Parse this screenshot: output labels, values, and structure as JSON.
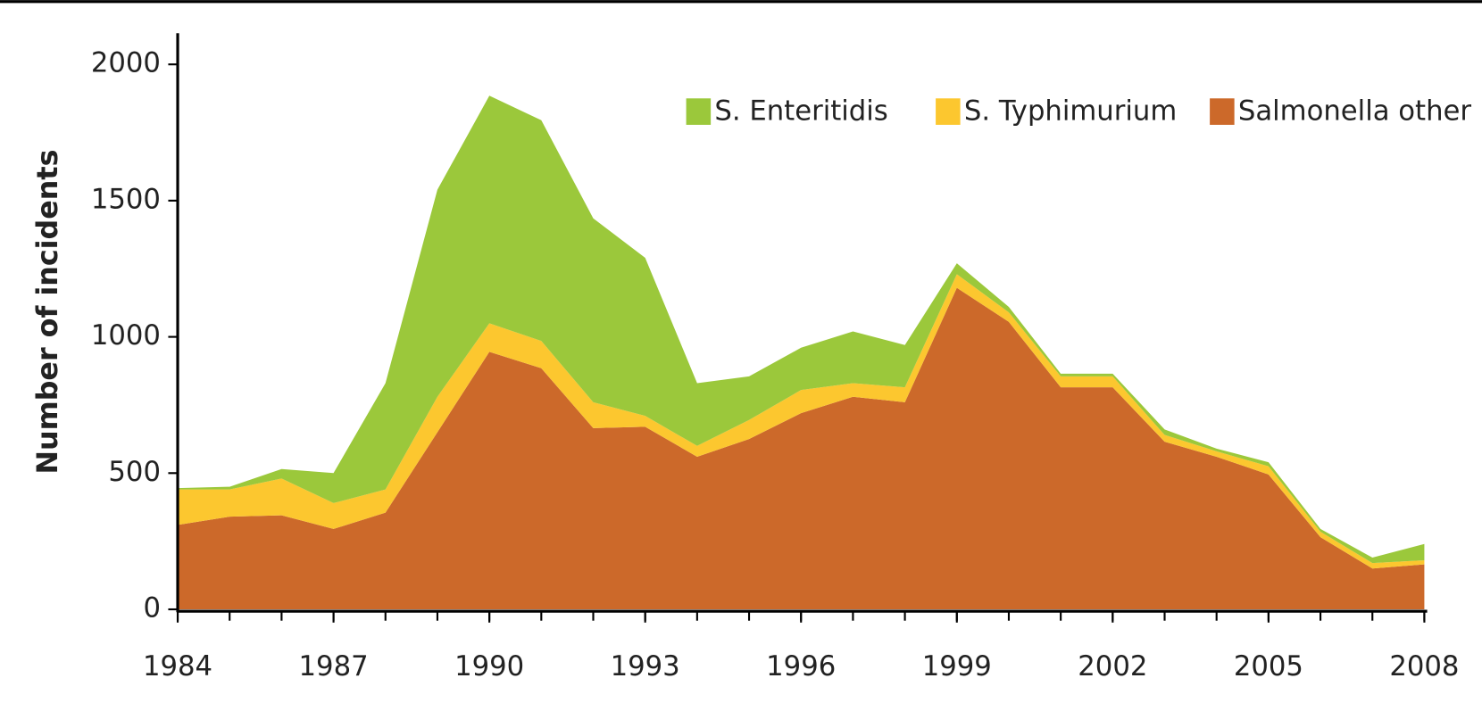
{
  "chart_data": {
    "type": "stacked-area",
    "y_label": "Number of incidents",
    "x": [
      1984,
      1985,
      1986,
      1987,
      1988,
      1989,
      1990,
      1991,
      1992,
      1993,
      1994,
      1995,
      1996,
      1997,
      1998,
      1999,
      2000,
      2001,
      2002,
      2003,
      2004,
      2005,
      2006,
      2007,
      2008
    ],
    "series": [
      {
        "name": "S. Enteritidis",
        "color": "#9bc83b",
        "values": [
          5,
          10,
          35,
          110,
          390,
          760,
          835,
          810,
          675,
          580,
          230,
          160,
          155,
          190,
          155,
          40,
          20,
          10,
          10,
          20,
          10,
          15,
          10,
          20,
          60
        ]
      },
      {
        "name": "S. Typhimurium",
        "color": "#fcc72f",
        "values": [
          130,
          100,
          135,
          95,
          85,
          130,
          105,
          100,
          95,
          40,
          40,
          70,
          85,
          50,
          55,
          50,
          35,
          40,
          40,
          25,
          20,
          30,
          20,
          20,
          15
        ]
      },
      {
        "name": "Salmonella other",
        "color": "#cc692a",
        "values": [
          310,
          340,
          345,
          295,
          355,
          650,
          945,
          885,
          665,
          670,
          560,
          625,
          720,
          780,
          760,
          1180,
          1055,
          815,
          815,
          615,
          560,
          495,
          265,
          150,
          165
        ]
      }
    ],
    "xlim": [
      1984,
      2008
    ],
    "xticks": [
      1984,
      1987,
      1990,
      1993,
      1996,
      1999,
      2002,
      2005,
      2008
    ],
    "ylim": [
      0,
      2000
    ],
    "yticks": [
      0,
      500,
      1000,
      1500,
      2000
    ],
    "legend": "top-right"
  }
}
